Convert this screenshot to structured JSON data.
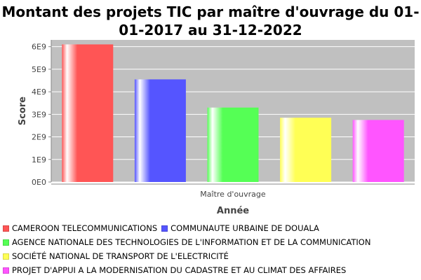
{
  "chart_data": {
    "type": "bar",
    "title": "Montant des projets TIC par maître d'ouvrage du 01-01-2017 au 31-12-2022",
    "xlabel": "Année",
    "ylabel": "Score",
    "categories": [
      "Maître d'ouvrage"
    ],
    "series": [
      {
        "name": "CAMEROON TELECOMMUNICATIONS",
        "values": [
          6100000000.0
        ],
        "color": "#ff5555"
      },
      {
        "name": "COMMUNAUTE URBAINE DE DOUALA",
        "values": [
          4550000000.0
        ],
        "color": "#5555ff"
      },
      {
        "name": "AGENCE NATIONALE DES TECHNOLOGIES DE L'INFORMATION ET DE LA COMMUNICATION",
        "values": [
          3300000000.0
        ],
        "color": "#55ff55"
      },
      {
        "name": "SOCIÉTÉ NATIONAL DE TRANSPORT DE L'ELECTRICITÉ",
        "values": [
          2850000000.0
        ],
        "color": "#ffff55"
      },
      {
        "name": "PROJET D'APPUI A LA MODERNISATION DU CADASTRE ET AU CLIMAT DES AFFAIRES",
        "values": [
          2750000000.0
        ],
        "color": "#ff55ff"
      }
    ],
    "ylim": [
      0,
      6300000000.0
    ],
    "yticks": [
      0,
      1000000000.0,
      2000000000.0,
      3000000000.0,
      4000000000.0,
      5000000000.0,
      6000000000.0
    ],
    "ytick_labels": [
      "0E0",
      "1E9",
      "2E9",
      "3E9",
      "4E9",
      "5E9",
      "6E9"
    ],
    "grid": true,
    "legend_position": "bottom",
    "plot_background": "#c0c0c0"
  }
}
